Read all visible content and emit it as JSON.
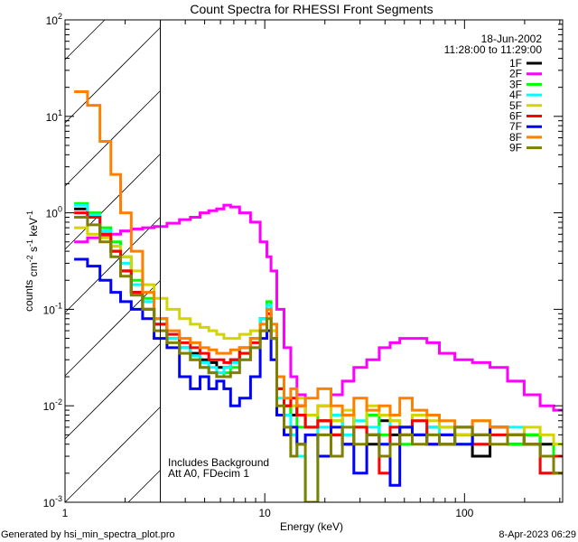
{
  "chart_data": {
    "type": "line",
    "title": "Count Spectra for RHESSI Front Segments",
    "xlabel": "Energy (keV)",
    "ylabel": "counts cm-2 s-1 keV-1",
    "xscale": "log",
    "yscale": "log",
    "xlim": [
      1,
      310
    ],
    "ylim": [
      0.001,
      100
    ],
    "x_tick_labels": [
      "1",
      "10",
      "100"
    ],
    "y_tick_labels": [
      {
        "base": "10",
        "exp": "-3",
        "value": 0.001
      },
      {
        "base": "10",
        "exp": "-2",
        "value": 0.01
      },
      {
        "base": "10",
        "exp": "-1",
        "value": 0.1
      },
      {
        "base": "10",
        "exp": "0",
        "value": 1
      },
      {
        "base": "10",
        "exp": "1",
        "value": 10
      },
      {
        "base": "10",
        "exp": "2",
        "value": 100
      }
    ],
    "shaded_region_keV": [
      1,
      3
    ],
    "date": "18-Jun-2002",
    "time_range": "11:28:00 to 11:29:00",
    "legend_placement": "top-right",
    "annotations": [
      "Includes Background",
      "Att A0, FDecim 1"
    ],
    "energies": [
      1.2,
      1.4,
      1.6,
      1.8,
      2.0,
      2.3,
      2.6,
      3.0,
      3.5,
      4.0,
      4.5,
      5.0,
      5.5,
      6.0,
      6.5,
      7.0,
      8.0,
      9.0,
      10.0,
      10.5,
      11.0,
      12.0,
      13.0,
      14.0,
      15.0,
      17.0,
      20.0,
      23.0,
      26.0,
      30.0,
      35.0,
      40.0,
      45.0,
      50.0,
      60.0,
      70.0,
      80.0,
      100,
      120,
      150,
      180,
      220,
      260,
      300
    ],
    "series": [
      {
        "name": "1F",
        "color": "#000000",
        "values": [
          1.1,
          0.9,
          0.6,
          0.4,
          0.25,
          0.15,
          0.1,
          0.07,
          0.05,
          0.04,
          0.035,
          0.03,
          0.028,
          0.025,
          0.025,
          0.03,
          0.04,
          0.05,
          0.08,
          0.1,
          0.05,
          0.015,
          0.01,
          0.008,
          0.01,
          0.006,
          0.007,
          0.005,
          0.008,
          0.006,
          0.004,
          0.007,
          0.005,
          0.006,
          0.005,
          0.006,
          0.004,
          0.005,
          0.003,
          0.006,
          0.004,
          0.005,
          0.004,
          0.003
        ]
      },
      {
        "name": "2F",
        "color": "#ff00ff",
        "values": [
          0.5,
          0.55,
          0.58,
          0.6,
          0.65,
          0.68,
          0.7,
          0.72,
          0.78,
          0.85,
          0.9,
          1.0,
          1.05,
          1.1,
          1.2,
          1.15,
          1.0,
          0.8,
          0.5,
          0.35,
          0.25,
          0.1,
          0.04,
          0.02,
          0.013,
          0.008,
          0.01,
          0.013,
          0.018,
          0.025,
          0.03,
          0.04,
          0.045,
          0.05,
          0.05,
          0.045,
          0.035,
          0.03,
          0.028,
          0.025,
          0.018,
          0.013,
          0.01,
          0.009
        ]
      },
      {
        "name": "3F",
        "color": "#00ff00",
        "values": [
          1.25,
          1.0,
          0.7,
          0.5,
          0.35,
          0.2,
          0.13,
          0.08,
          0.05,
          0.04,
          0.03,
          0.025,
          0.022,
          0.02,
          0.022,
          0.025,
          0.035,
          0.05,
          0.08,
          0.12,
          0.06,
          0.015,
          0.008,
          0.01,
          0.006,
          0.008,
          0.005,
          0.007,
          0.004,
          0.006,
          0.008,
          0.005,
          0.006,
          0.004,
          0.007,
          0.005,
          0.006,
          0.004,
          0.005,
          0.006,
          0.004,
          0.005,
          0.003,
          0.004
        ]
      },
      {
        "name": "4F",
        "color": "#00ffff",
        "values": [
          1.2,
          0.95,
          0.65,
          0.45,
          0.3,
          0.18,
          0.12,
          0.08,
          0.05,
          0.04,
          0.033,
          0.028,
          0.025,
          0.022,
          0.025,
          0.028,
          0.03,
          0.04,
          0.08,
          0.11,
          0.05,
          0.012,
          0.008,
          0.005,
          0.003,
          0.001,
          0.006,
          0.008,
          0.005,
          0.007,
          0.006,
          0.004,
          0.007,
          0.005,
          0.008,
          0.006,
          0.005,
          0.006,
          0.004,
          0.005,
          0.006,
          0.004,
          0.002,
          0.003
        ]
      },
      {
        "name": "5F",
        "color": "#d4d400",
        "values": [
          0.7,
          0.6,
          0.55,
          0.45,
          0.35,
          0.25,
          0.18,
          0.13,
          0.1,
          0.08,
          0.07,
          0.065,
          0.06,
          0.055,
          0.05,
          0.05,
          0.055,
          0.06,
          0.07,
          0.09,
          0.06,
          0.02,
          0.012,
          0.01,
          0.012,
          0.008,
          0.01,
          0.007,
          0.009,
          0.006,
          0.01,
          0.008,
          0.007,
          0.006,
          0.008,
          0.007,
          0.006,
          0.005,
          0.007,
          0.006,
          0.005,
          0.006,
          0.005,
          0.004
        ]
      },
      {
        "name": "6F",
        "color": "#ff0000",
        "values": [
          1.0,
          0.9,
          0.6,
          0.4,
          0.25,
          0.15,
          0.1,
          0.07,
          0.055,
          0.045,
          0.04,
          0.035,
          0.03,
          0.03,
          0.028,
          0.03,
          0.035,
          0.045,
          0.06,
          0.09,
          0.05,
          0.015,
          0.01,
          0.012,
          0.008,
          0.006,
          0.007,
          0.005,
          0.004,
          0.006,
          0.005,
          0.002,
          0.006,
          0.005,
          0.007,
          0.004,
          0.005,
          0.006,
          0.004,
          0.005,
          0.005,
          0.004,
          0.002,
          0.003
        ]
      },
      {
        "name": "7F",
        "color": "#0000ff",
        "values": [
          0.33,
          0.28,
          0.2,
          0.15,
          0.12,
          0.1,
          0.08,
          0.05,
          0.04,
          0.02,
          0.015,
          0.02,
          0.015,
          0.018,
          0.015,
          0.01,
          0.012,
          0.02,
          0.05,
          0.06,
          0.03,
          0.008,
          0.005,
          0.006,
          0.004,
          0.005,
          0.003,
          0.006,
          0.004,
          0.002,
          0.005,
          0.004,
          0.0015,
          0.006,
          0.005,
          0.004,
          0.005,
          0.004,
          0.005,
          0.006,
          0.005,
          0.004,
          0.003,
          0.002
        ]
      },
      {
        "name": "8F",
        "color": "#ff8000",
        "values": [
          18,
          13,
          5.5,
          2.5,
          1.0,
          0.4,
          0.15,
          0.08,
          0.06,
          0.05,
          0.045,
          0.04,
          0.038,
          0.035,
          0.035,
          0.038,
          0.04,
          0.05,
          0.07,
          0.1,
          0.07,
          0.02,
          0.012,
          0.015,
          0.01,
          0.012,
          0.015,
          0.01,
          0.008,
          0.012,
          0.009,
          0.01,
          0.008,
          0.012,
          0.009,
          0.008,
          0.007,
          0.006,
          0.007,
          0.006,
          0.005,
          0.004,
          0.003,
          0.002
        ]
      },
      {
        "name": "9F",
        "color": "#808000",
        "values": [
          0.9,
          0.75,
          0.5,
          0.35,
          0.22,
          0.14,
          0.1,
          0.06,
          0.045,
          0.035,
          0.03,
          0.025,
          0.022,
          0.02,
          0.02,
          0.022,
          0.03,
          0.04,
          0.06,
          0.08,
          0.05,
          0.01,
          0.006,
          0.003,
          0.004,
          0.001,
          0.005,
          0.003,
          0.006,
          0.004,
          0.005,
          0.003,
          0.004,
          0.005,
          0.004,
          0.005,
          0.004,
          0.006,
          0.005,
          0.004,
          0.005,
          0.004,
          0.003,
          0.002
        ]
      }
    ]
  },
  "footer": {
    "generated_by": "Generated by hsi_min_spectra_plot.pro",
    "timestamp": "8-Apr-2023 06:29"
  }
}
